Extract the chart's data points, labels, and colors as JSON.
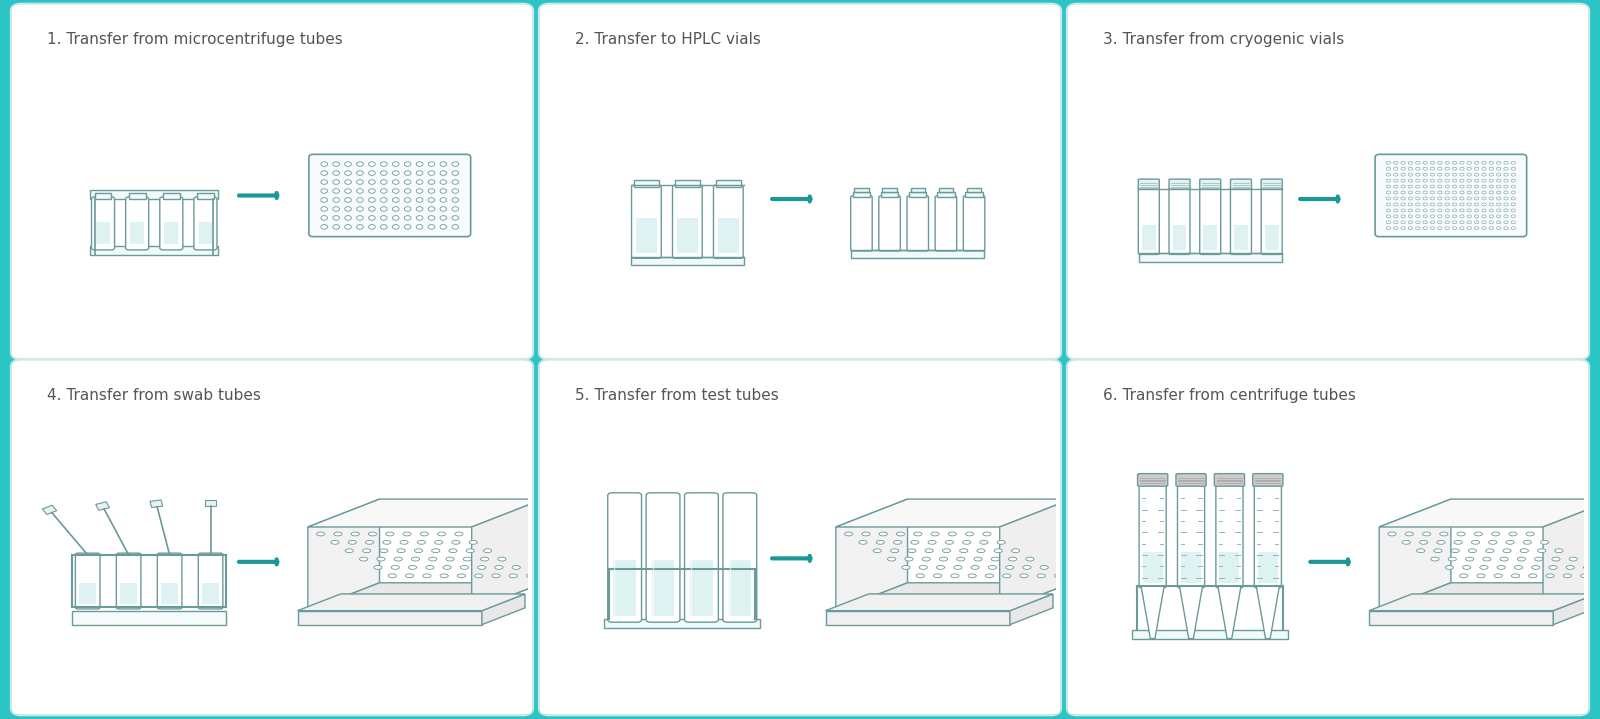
{
  "background_color": "#2ac4c4",
  "panel_bg": "#ffffff",
  "panel_edge_color": "#c8e8e8",
  "teal": "#1a9898",
  "arrow_color": "#1a9898",
  "lc": "#8ababa",
  "lc2": "#6a9a9a",
  "lc3": "#4a7a7a",
  "text_color": "#555555",
  "tube_fill": "#dff2f2",
  "tube_fill2": "#c8e8e8",
  "dark_fill": "#aaaaaa",
  "titles": [
    "1. Transfer from microcentrifuge tubes",
    "2. Transfer to HPLC vials",
    "3. Transfer from cryogenic vials",
    "4. Transfer from swab tubes",
    "5. Transfer from test tubes",
    "6. Transfer from centrifuge tubes"
  ],
  "title_fontsize": 11,
  "nrows": 2,
  "ncols": 3
}
